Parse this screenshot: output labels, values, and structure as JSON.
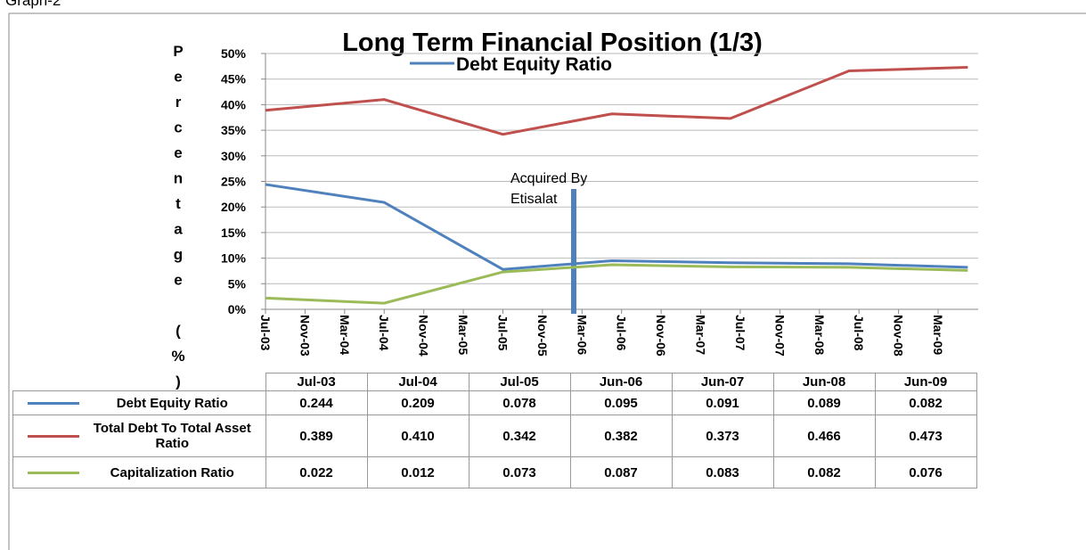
{
  "caption": "Graph-2",
  "chart_data": {
    "type": "line",
    "title": "Long Term Financial Position (1/3)",
    "ylabel": "Percentage (%)",
    "annotation": [
      "Acquired By",
      "Etisalat"
    ],
    "categories": [
      "Jul-03",
      "Jul-04",
      "Jul-05",
      "Jun-06",
      "Jun-07",
      "Jun-08",
      "Jun-09"
    ],
    "xticks": [
      "Jul-03",
      "Nov-03",
      "Mar-04",
      "Jul-04",
      "Nov-04",
      "Mar-05",
      "Jul-05",
      "Nov-05",
      "Mar-06",
      "Jul-06",
      "Nov-06",
      "Mar-07",
      "Jul-07",
      "Nov-07",
      "Mar-08",
      "Jul-08",
      "Nov-08",
      "Mar-09"
    ],
    "ylim": [
      0,
      50
    ],
    "yticks": [
      {
        "value": 0,
        "label": "0%"
      },
      {
        "value": 5,
        "label": "5%"
      },
      {
        "value": 10,
        "label": "10%"
      },
      {
        "value": 15,
        "label": "15%"
      },
      {
        "value": 20,
        "label": "20%"
      },
      {
        "value": 25,
        "label": "25%"
      },
      {
        "value": 30,
        "label": "30%"
      },
      {
        "value": 35,
        "label": "35%"
      },
      {
        "value": 40,
        "label": "40%"
      },
      {
        "value": 45,
        "label": "45%"
      },
      {
        "value": 50,
        "label": "50%"
      }
    ],
    "grid": true,
    "series": [
      {
        "name": "Debt Equity Ratio",
        "color": "#4f81bd",
        "values": [
          24.4,
          20.9,
          7.8,
          9.5,
          9.1,
          8.9,
          8.2
        ],
        "value_labels": [
          "0.244",
          "0.209",
          "0.078",
          "0.095",
          "0.091",
          "0.089",
          "0.082"
        ]
      },
      {
        "name": "Total Debt To Total Asset Ratio",
        "color": "#c0504d",
        "values": [
          38.9,
          41.0,
          34.2,
          38.2,
          37.3,
          46.6,
          47.3
        ],
        "value_labels": [
          "0.389",
          "0.410",
          "0.342",
          "0.382",
          "0.373",
          "0.466",
          "0.473"
        ]
      },
      {
        "name": "Capitalization Ratio",
        "color": "#9bbb59",
        "values": [
          2.2,
          1.2,
          7.3,
          8.7,
          8.3,
          8.2,
          7.6
        ],
        "value_labels": [
          "0.022",
          "0.012",
          "0.073",
          "0.087",
          "0.083",
          "0.082",
          "0.076"
        ]
      }
    ]
  }
}
